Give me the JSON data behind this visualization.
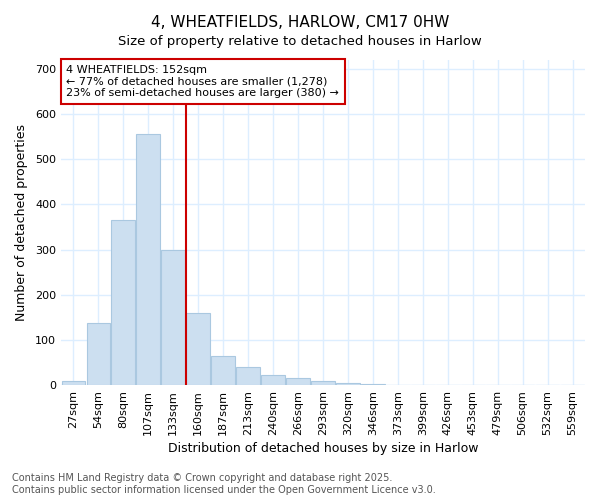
{
  "title1": "4, WHEATFIELDS, HARLOW, CM17 0HW",
  "title2": "Size of property relative to detached houses in Harlow",
  "xlabel": "Distribution of detached houses by size in Harlow",
  "ylabel": "Number of detached properties",
  "bar_color": "#ccdff0",
  "bar_edge_color": "#aac8e0",
  "background_color": "#ffffff",
  "grid_color": "#ddeeff",
  "categories": [
    "27sqm",
    "54sqm",
    "80sqm",
    "107sqm",
    "133sqm",
    "160sqm",
    "187sqm",
    "213sqm",
    "240sqm",
    "266sqm",
    "293sqm",
    "320sqm",
    "346sqm",
    "373sqm",
    "399sqm",
    "426sqm",
    "453sqm",
    "479sqm",
    "506sqm",
    "532sqm",
    "559sqm"
  ],
  "values": [
    10,
    138,
    365,
    555,
    300,
    160,
    65,
    40,
    22,
    15,
    10,
    5,
    2,
    0,
    0,
    0,
    0,
    0,
    0,
    0,
    0
  ],
  "ylim": [
    0,
    720
  ],
  "yticks": [
    0,
    100,
    200,
    300,
    400,
    500,
    600,
    700
  ],
  "red_line_index": 4.5,
  "property_line_label": "4 WHEATFIELDS: 152sqm",
  "annotation_line1": "← 77% of detached houses are smaller (1,278)",
  "annotation_line2": "23% of semi-detached houses are larger (380) →",
  "footer_line1": "Contains HM Land Registry data © Crown copyright and database right 2025.",
  "footer_line2": "Contains public sector information licensed under the Open Government Licence v3.0.",
  "red_line_color": "#cc0000",
  "ann_box_facecolor": "#ffffff",
  "ann_box_edgecolor": "#cc0000",
  "title_fontsize": 11,
  "axis_label_fontsize": 9,
  "tick_fontsize": 8,
  "ann_fontsize": 8,
  "footer_fontsize": 7
}
